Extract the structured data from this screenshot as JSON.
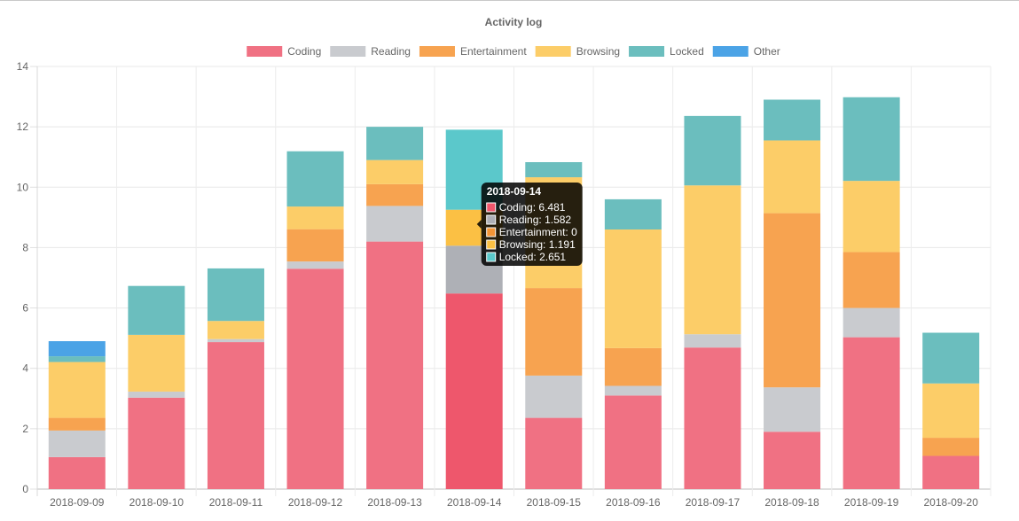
{
  "chart_data": {
    "type": "bar",
    "stacked": true,
    "title": "Activity log",
    "legend_position": "top",
    "categories": [
      "2018-09-09",
      "2018-09-10",
      "2018-09-11",
      "2018-09-12",
      "2018-09-13",
      "2018-09-14",
      "2018-09-15",
      "2018-09-16",
      "2018-09-17",
      "2018-09-18",
      "2018-09-19",
      "2018-09-20"
    ],
    "ylim": [
      0,
      14
    ],
    "yticks": [
      "0",
      "2",
      "4",
      "6",
      "8",
      "10",
      "12",
      "14"
    ],
    "grid": true,
    "series": [
      {
        "name": "Coding",
        "color": "#f07183",
        "hover_color": "#ee576c",
        "values": [
          1.06,
          3.03,
          4.87,
          7.3,
          8.2,
          6.481,
          2.36,
          3.1,
          4.69,
          1.9,
          5.03,
          1.1
        ]
      },
      {
        "name": "Reading",
        "color": "#c9cbcf",
        "hover_color": "#aeb0b6",
        "values": [
          0.88,
          0.2,
          0.1,
          0.24,
          1.18,
          1.582,
          1.4,
          0.32,
          0.44,
          1.47,
          0.97,
          0
        ]
      },
      {
        "name": "Entertainment",
        "color": "#f7a350",
        "hover_color": "#f39536",
        "values": [
          0.42,
          0,
          0,
          1.07,
          0.72,
          0,
          2.9,
          1.25,
          0,
          5.77,
          1.85,
          0.6
        ]
      },
      {
        "name": "Browsing",
        "color": "#fccd68",
        "hover_color": "#fbc044",
        "values": [
          1.85,
          1.88,
          0.6,
          0.75,
          0.8,
          1.191,
          3.67,
          3.93,
          4.93,
          2.41,
          2.36,
          1.8
        ]
      },
      {
        "name": "Locked",
        "color": "#6bbebe",
        "hover_color": "#5bc8cb",
        "values": [
          0.19,
          1.62,
          1.74,
          1.83,
          1.1,
          2.651,
          0.5,
          1.0,
          2.3,
          1.35,
          2.77,
          1.68
        ]
      },
      {
        "name": "Other",
        "color": "#4ba3e6",
        "hover_color": "#3597e2",
        "values": [
          0.5,
          0,
          0,
          0,
          0,
          0,
          0,
          0,
          0,
          0,
          0,
          0
        ]
      }
    ],
    "highlighted_index": 5,
    "tooltip": {
      "title": "2018-09-14",
      "lines": [
        "Coding: 6.481",
        "Reading: 1.582",
        "Entertainment: 0",
        "Browsing: 1.191",
        "Locked: 2.651"
      ],
      "colors": [
        "#ee576c",
        "#aeb0b6",
        "#f39536",
        "#fbc044",
        "#5bc8cb"
      ]
    }
  }
}
